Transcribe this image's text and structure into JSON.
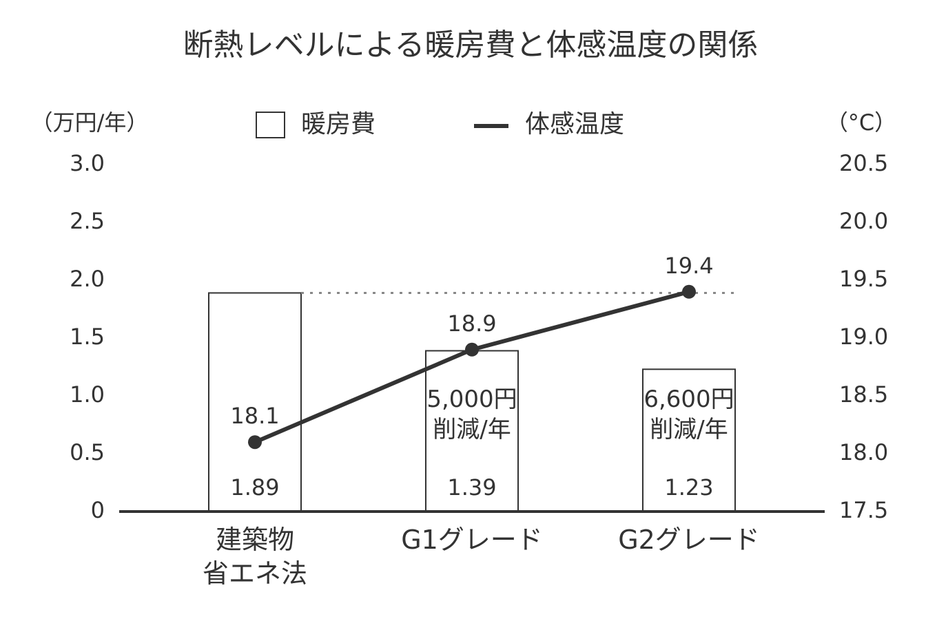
{
  "chart_data": {
    "type": "combo",
    "title": "断熱レベルによる暖房費と体感温度の関係",
    "y_label": "（万円/年）",
    "y2_label": "（°C）",
    "categories": [
      "建築物\n省エネ法",
      "G1グレード",
      "G2グレード"
    ],
    "series": [
      {
        "name": "暖房費",
        "type": "bar",
        "color": "#ffffff",
        "values": [
          1.89,
          1.39,
          1.23
        ]
      },
      {
        "name": "体感温度",
        "type": "line",
        "color": "#333333",
        "axis": "y2",
        "values": [
          18.1,
          18.9,
          19.4
        ]
      }
    ],
    "bar_notes": [
      null,
      "5,000円\n削減/年",
      "6,600円\n削減/年"
    ],
    "ylim": [
      0,
      3
    ],
    "yticks": [
      0,
      {
        "value": 0.5,
        "label": "0.5"
      },
      {
        "value": 1,
        "label": "1.0"
      },
      1.5,
      {
        "value": 2,
        "label": "2.0"
      },
      2.5,
      {
        "value": 3,
        "label": "3.0"
      }
    ],
    "y2lim": [
      17.5,
      20.5
    ],
    "y2ticks": [
      17.5,
      {
        "value": 18,
        "label": "18.0"
      },
      18.5,
      {
        "value": 19,
        "label": "19.0"
      },
      19.5,
      {
        "value": 20,
        "label": "20.0"
      },
      20.5
    ],
    "grid": false
  }
}
